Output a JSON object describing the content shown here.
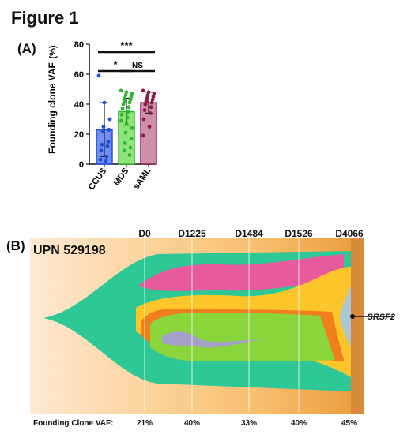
{
  "figure_title": "Figure 1",
  "panel_a": {
    "label": "(A)",
    "chart_data": {
      "type": "bar",
      "ylabel": "Founding clone VAF",
      "yunit": "(%)",
      "ylim": [
        0,
        80
      ],
      "yticks": [
        0,
        20,
        40,
        60,
        80
      ],
      "categories": [
        "CCUS",
        "MDS",
        "sAML"
      ],
      "means": [
        23,
        35,
        41
      ],
      "error_high": [
        41,
        44,
        48
      ],
      "error_low": [
        5,
        26,
        34
      ],
      "bar_fill": [
        "#6f8ff2",
        "#8fe47a",
        "#cf8fab"
      ],
      "bar_stroke": [
        "#1f4fd8",
        "#2fb52f",
        "#8a1c4c"
      ],
      "points": [
        [
          59,
          41,
          30,
          25,
          23,
          22,
          15,
          13,
          12,
          9,
          5,
          3,
          2
        ],
        [
          49,
          48,
          47,
          46,
          45,
          44,
          43,
          42,
          41,
          40,
          38,
          37,
          35,
          33,
          31,
          29,
          27,
          24,
          21,
          17,
          14,
          11,
          9,
          6
        ],
        [
          49,
          48,
          47,
          46,
          45,
          44,
          43,
          42,
          41,
          40,
          38,
          36,
          34,
          30,
          25,
          19
        ]
      ],
      "significance": [
        {
          "pair": [
            0,
            1
          ],
          "label": "*"
        },
        {
          "pair": [
            1,
            2
          ],
          "label": "NS"
        },
        {
          "pair": [
            0,
            2
          ],
          "label": "***"
        }
      ]
    }
  },
  "panel_b": {
    "label": "(B)",
    "patient": "UPN 529198",
    "chart_data": {
      "type": "fish_plot",
      "timepoints": [
        "D0",
        "D1225",
        "D1484",
        "D1526",
        "D4066"
      ],
      "founding_label": "Founding Clone VAF:",
      "founding_vaf": [
        "21%",
        "40%",
        "33%",
        "40%",
        "45%"
      ],
      "gene_annotation": "SRSF2",
      "colors": {
        "founder": "#2ec896",
        "pink": "#e85a9e",
        "yellow": "#fcc62a",
        "green": "#8ad43c",
        "orange": "#f07e1c",
        "purple": "#a6a0c8",
        "lightblue": "#a8c6d6"
      }
    }
  }
}
